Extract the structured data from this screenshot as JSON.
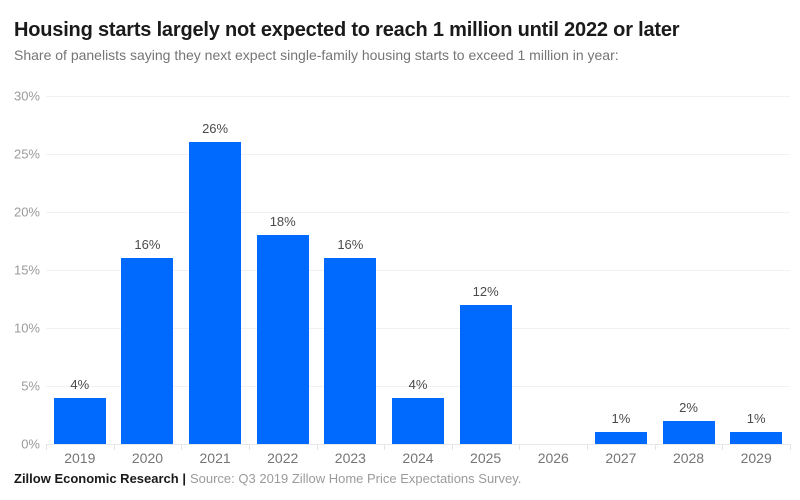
{
  "header": {
    "title": "Housing starts largely not expected to reach 1 million until 2022 or later",
    "subtitle": "Share of panelists saying they next expect single-family housing starts to exceed 1 million in year:"
  },
  "chart_data": {
    "type": "bar",
    "title": "Housing starts largely not expected to reach 1 million until 2022 or later",
    "subtitle": "Share of panelists saying they next expect single-family housing starts to exceed 1 million in year:",
    "categories": [
      "2019",
      "2020",
      "2021",
      "2022",
      "2023",
      "2024",
      "2025",
      "2026",
      "2027",
      "2028",
      "2029"
    ],
    "values": [
      4,
      16,
      26,
      18,
      16,
      4,
      12,
      0,
      1,
      2,
      1
    ],
    "bar_labels": [
      "4%",
      "16%",
      "26%",
      "18%",
      "16%",
      "4%",
      "12%",
      "",
      "1%",
      "2%",
      "1%"
    ],
    "xlabel": "",
    "ylabel": "",
    "ylim": [
      0,
      30
    ],
    "ytick_step": 5,
    "ytick_labels": [
      "0%",
      "5%",
      "10%",
      "15%",
      "20%",
      "25%",
      "30%"
    ],
    "grid": true,
    "legend": "none",
    "bar_color": "#006aff"
  },
  "footer": {
    "brand": "Zillow Economic Research |",
    "source": "Source: Q3 2019 Zillow Home Price Expectations Survey."
  },
  "colors": {
    "bar": "#006aff",
    "title": "#1a1a1a",
    "subtitle": "#757575",
    "ytick_label": "#9b9b9b",
    "xtick_label": "#757575",
    "value_label": "#4a4a4a",
    "gridline": "#f0f1f2",
    "baseline": "#e6e8ea",
    "background": "#ffffff"
  }
}
